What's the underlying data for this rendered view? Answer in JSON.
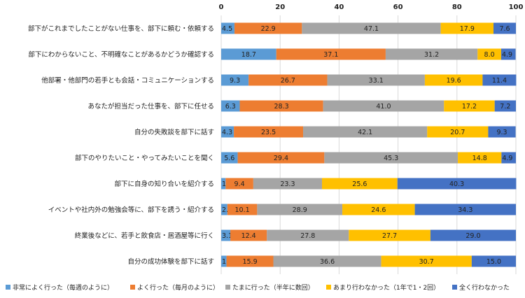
{
  "chart_data": {
    "type": "bar",
    "orientation": "horizontal",
    "stacked": true,
    "xlim": [
      0,
      100
    ],
    "xticks": [
      0,
      20,
      40,
      60,
      80,
      100
    ],
    "grid": true,
    "legend_position": "bottom",
    "categories": [
      "部下がこれまでしたことがない仕事を、部下に頼む・依頼する",
      "部下にわからないこと、不明確なことがあるかどうか確認する",
      "他部署・他部門の若手とも会話・コミュニケーションする",
      "あなたが担当だった仕事を、部下に任せる",
      "自分の失敗談を部下に話す",
      "部下のやりたいこと・やってみたいことを聞く",
      "部下に自身の知り合いを紹介する",
      "イベントや社内外の勉強会等に、部下を誘う・紹介する",
      "終業後などに、若手と飲食店・居酒屋等に行く",
      "自分の成功体験を部下に話す"
    ],
    "series": [
      {
        "name": "非常によく行った（毎週のように）",
        "color": "#5B9BD5",
        "values": [
          4.5,
          18.7,
          9.3,
          6.3,
          4.3,
          5.6,
          1.5,
          2.1,
          3.1,
          1.8
        ]
      },
      {
        "name": "よく行った（毎月のように）",
        "color": "#ED7D31",
        "values": [
          22.9,
          37.1,
          26.7,
          28.3,
          23.5,
          29.4,
          9.4,
          10.1,
          12.4,
          15.9
        ]
      },
      {
        "name": "たまに行った（半年に数回）",
        "color": "#A5A5A5",
        "values": [
          47.1,
          31.2,
          33.1,
          41.0,
          42.1,
          45.3,
          23.3,
          28.9,
          27.8,
          36.6
        ]
      },
      {
        "name": "あまり行わなかった（1年で1・2回）",
        "color": "#FFC000",
        "values": [
          17.9,
          8.0,
          19.6,
          17.2,
          20.7,
          14.8,
          25.6,
          24.6,
          27.7,
          30.7
        ]
      },
      {
        "name": "全く行わなかった",
        "color": "#4472C4",
        "values": [
          7.6,
          4.9,
          11.4,
          7.2,
          9.3,
          4.9,
          40.3,
          34.3,
          29.0,
          15.0
        ]
      }
    ]
  }
}
